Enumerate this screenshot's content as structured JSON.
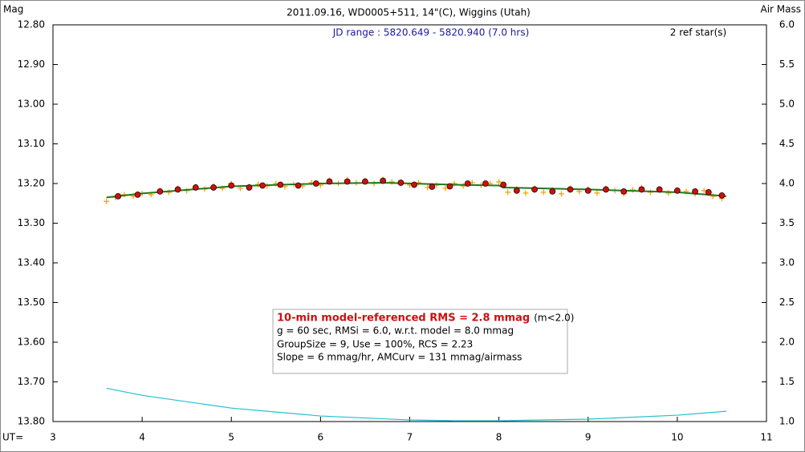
{
  "chart_data": {
    "type": "scatter",
    "title": "2011.09.16, WD0005+511, 14\"(C), Wiggins (Utah)",
    "y_label": "Mag",
    "y2_label": "Air Mass",
    "x_label": "UT=",
    "annotations": {
      "jd_range": "JD range : 5820.649 - 5820.940 (7.0 hrs)",
      "ref_stars": "2 ref star(s)",
      "rms_title": "10-min model-referenced RMS = 2.8 mmag",
      "rms_note": "(m<2.0)",
      "line1": "g = 60 sec, RMSi = 6.0, w.r.t. model = 8.0 mmag",
      "line2": "GroupSize = 9, Use = 100%, RCS = 2.23",
      "line3": "Slope = 6 mmag/hr, AMCurv = 131 mmag/airmass"
    },
    "xlim": [
      3,
      11
    ],
    "xticks": [
      3,
      4,
      5,
      6,
      7,
      8,
      9,
      10,
      11
    ],
    "ylim": [
      12.8,
      13.8
    ],
    "yinvert": true,
    "yticks": [
      {
        "value": 12.8,
        "label": "12.80"
      },
      {
        "value": 12.9,
        "label": "12.90"
      },
      {
        "value": 13.0,
        "label": "13.00"
      },
      {
        "value": 13.1,
        "label": "13.10"
      },
      {
        "value": 13.2,
        "label": "13.20"
      },
      {
        "value": 13.3,
        "label": "13.30"
      },
      {
        "value": 13.4,
        "label": "13.40"
      },
      {
        "value": 13.5,
        "label": "13.50"
      },
      {
        "value": 13.6,
        "label": "13.60"
      },
      {
        "value": 13.7,
        "label": "13.70"
      },
      {
        "value": 13.8,
        "label": "13.80"
      }
    ],
    "y2lim": [
      1,
      6
    ],
    "y2ticks": [
      {
        "value": 6,
        "label": "6.0"
      },
      {
        "value": 5.5,
        "label": "5.5"
      },
      {
        "value": 5,
        "label": "5.0"
      },
      {
        "value": 4.5,
        "label": "4.5"
      },
      {
        "value": 4,
        "label": "4.0"
      },
      {
        "value": 3.5,
        "label": "3.5"
      },
      {
        "value": 3,
        "label": "3.0"
      },
      {
        "value": 2.5,
        "label": "2.5"
      },
      {
        "value": 2,
        "label": "2.0"
      },
      {
        "value": 1.5,
        "label": "1.5"
      },
      {
        "value": 1,
        "label": "1.0"
      }
    ],
    "series": [
      {
        "marker": "plus",
        "color": "#f0a000",
        "x": [
          3.6,
          3.7,
          3.8,
          3.9,
          4.0,
          4.1,
          4.2,
          4.3,
          4.4,
          4.5,
          4.6,
          4.7,
          4.8,
          4.9,
          5.0,
          5.1,
          5.2,
          5.3,
          5.4,
          5.5,
          5.6,
          5.7,
          5.8,
          5.9,
          6.0,
          6.1,
          6.2,
          6.3,
          6.4,
          6.5,
          6.6,
          6.7,
          6.8,
          6.9,
          7.0,
          7.1,
          7.2,
          7.3,
          7.4,
          7.5,
          7.6,
          7.7,
          7.8,
          7.9,
          8.0,
          8.1,
          8.2,
          8.3,
          8.4,
          8.5,
          8.6,
          8.7,
          8.8,
          8.9,
          9.0,
          9.1,
          9.2,
          9.3,
          9.4,
          9.5,
          9.6,
          9.7,
          9.8,
          9.9,
          10.0,
          10.1,
          10.2,
          10.3,
          10.4,
          10.5
        ],
        "values": [
          13.245,
          13.235,
          13.228,
          13.232,
          13.225,
          13.228,
          13.218,
          13.222,
          13.212,
          13.218,
          13.208,
          13.214,
          13.206,
          13.212,
          13.2,
          13.212,
          13.208,
          13.202,
          13.206,
          13.2,
          13.208,
          13.202,
          13.206,
          13.198,
          13.204,
          13.192,
          13.2,
          13.19,
          13.198,
          13.192,
          13.2,
          13.19,
          13.196,
          13.2,
          13.204,
          13.198,
          13.21,
          13.204,
          13.212,
          13.2,
          13.206,
          13.198,
          13.204,
          13.2,
          13.196,
          13.222,
          13.214,
          13.224,
          13.212,
          13.222,
          13.216,
          13.226,
          13.212,
          13.22,
          13.214,
          13.224,
          13.212,
          13.218,
          13.226,
          13.216,
          13.21,
          13.222,
          13.214,
          13.224,
          13.216,
          13.22,
          13.226,
          13.218,
          13.232,
          13.238
        ]
      },
      {
        "marker": "line",
        "color": "#1f7a1f",
        "x": [
          3.6,
          4,
          5,
          6,
          6.7,
          7.5,
          8,
          8.05,
          9,
          10,
          10.55
        ],
        "values": [
          13.235,
          13.225,
          13.207,
          13.2,
          13.198,
          13.203,
          13.205,
          13.21,
          13.215,
          13.222,
          13.232
        ]
      },
      {
        "marker": "circle",
        "color": "#cc1010",
        "x": [
          3.73,
          3.95,
          4.2,
          4.4,
          4.6,
          4.8,
          5.0,
          5.2,
          5.35,
          5.55,
          5.75,
          5.95,
          6.1,
          6.3,
          6.5,
          6.7,
          6.9,
          7.05,
          7.25,
          7.45,
          7.65,
          7.85,
          8.05,
          8.2,
          8.4,
          8.6,
          8.8,
          9.0,
          9.2,
          9.4,
          9.6,
          9.8,
          10.0,
          10.2,
          10.35,
          10.5
        ],
        "values": [
          13.232,
          13.228,
          13.22,
          13.215,
          13.21,
          13.21,
          13.205,
          13.21,
          13.205,
          13.203,
          13.205,
          13.2,
          13.195,
          13.195,
          13.195,
          13.193,
          13.198,
          13.203,
          13.208,
          13.207,
          13.2,
          13.2,
          13.203,
          13.218,
          13.215,
          13.22,
          13.215,
          13.218,
          13.215,
          13.22,
          13.215,
          13.215,
          13.218,
          13.22,
          13.222,
          13.23
        ]
      },
      {
        "marker": "line",
        "axis": "y2",
        "color": "#20c0d0",
        "x": [
          3.6,
          4,
          5,
          6,
          7,
          7.5,
          8,
          9,
          10,
          10.55
        ],
        "values": [
          1.42,
          1.33,
          1.17,
          1.07,
          1.02,
          1.01,
          1.01,
          1.03,
          1.08,
          1.13
        ]
      }
    ]
  }
}
